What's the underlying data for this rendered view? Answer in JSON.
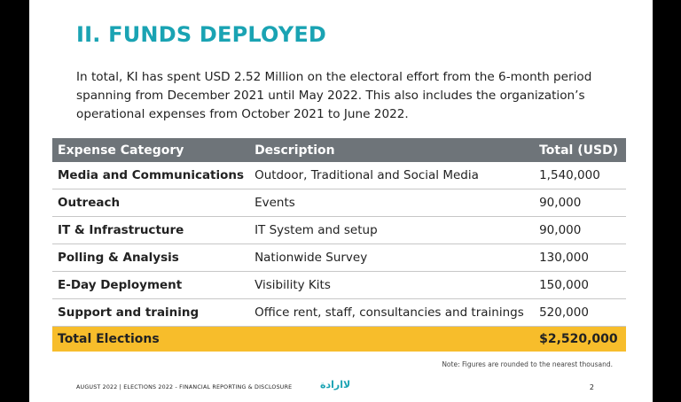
{
  "title": "II. FUNDS DEPLOYED",
  "intro": "In total, KI has spent USD 2.52 Million on the electoral effort from the 6-month period spanning from December 2021 until May 2022. This also includes the organization’s operational expenses from October 2021 to June 2022.",
  "table": {
    "headers": [
      "Expense Category",
      "Description",
      "Total (USD)"
    ],
    "rows": [
      {
        "category": "Media and Communications",
        "description": "Outdoor, Traditional and Social Media",
        "total": "1,540,000"
      },
      {
        "category": "Outreach",
        "description": "Events",
        "total": "90,000"
      },
      {
        "category": "IT & Infrastructure",
        "description": "IT System and setup",
        "total": "90,000"
      },
      {
        "category": "Polling & Analysis",
        "description": "Nationwide Survey",
        "total": "130,000"
      },
      {
        "category": "E-Day Deployment",
        "description": "Visibility Kits",
        "total": "150,000"
      },
      {
        "category": "Support and training",
        "description": "Office rent, staff, consultancies and trainings",
        "total": "520,000"
      }
    ],
    "total_label": "Total Elections",
    "total_value": "$2,520,000"
  },
  "note": "Note: Figures are rounded to the nearest thousand.",
  "footer": "AUGUST 2022 | ELECTIONS 2022 - FINANCIAL REPORTING & DISCLOSURE",
  "logo_text": "لاارادة",
  "page_number": "2",
  "colors": {
    "title": "#1aa3b3",
    "header_bg": "#6e7479",
    "total_bg": "#f7bd2b"
  }
}
